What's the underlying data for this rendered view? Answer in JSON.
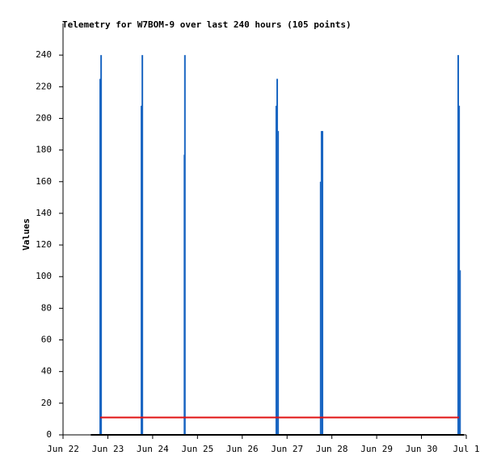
{
  "chart_data": {
    "type": "bar",
    "title": "Telemetry for W7BOM-9 over last 240 hours (105 points)",
    "ylabel": "Values",
    "xlim": [
      0,
      9
    ],
    "xticks": [
      {
        "value": 0,
        "label": "Jun 22"
      },
      {
        "value": 1,
        "label": "Jun 23"
      },
      {
        "value": 2,
        "label": "Jun 24"
      },
      {
        "value": 3,
        "label": "Jun 25"
      },
      {
        "value": 4,
        "label": "Jun 26"
      },
      {
        "value": 5,
        "label": "Jun 27"
      },
      {
        "value": 6,
        "label": "Jun 28"
      },
      {
        "value": 7,
        "label": "Jun 29"
      },
      {
        "value": 8,
        "label": "Jun 30"
      },
      {
        "value": 9,
        "label": "Jul 1"
      }
    ],
    "ylim": [
      0,
      260
    ],
    "yticks": [
      0,
      20,
      40,
      60,
      80,
      100,
      120,
      140,
      160,
      180,
      200,
      220,
      240
    ],
    "series": [
      {
        "type": "bar",
        "color": "#1a66c2",
        "x": [
          0.83,
          0.85,
          1.75,
          1.77,
          2.71,
          2.72,
          4.76,
          4.78,
          4.8,
          5.75,
          5.77,
          5.79,
          8.82,
          8.84,
          8.86
        ],
        "values": [
          225,
          240,
          208,
          240,
          177,
          240,
          208,
          225,
          192,
          160,
          192,
          192,
          240,
          208,
          104
        ]
      },
      {
        "type": "line",
        "color": "#e01010",
        "x": [
          0.83,
          8.84
        ],
        "values": [
          11,
          11
        ]
      },
      {
        "type": "line",
        "color": "#000000",
        "x": [
          0.62,
          8.95
        ],
        "values": [
          0,
          0
        ]
      }
    ]
  }
}
